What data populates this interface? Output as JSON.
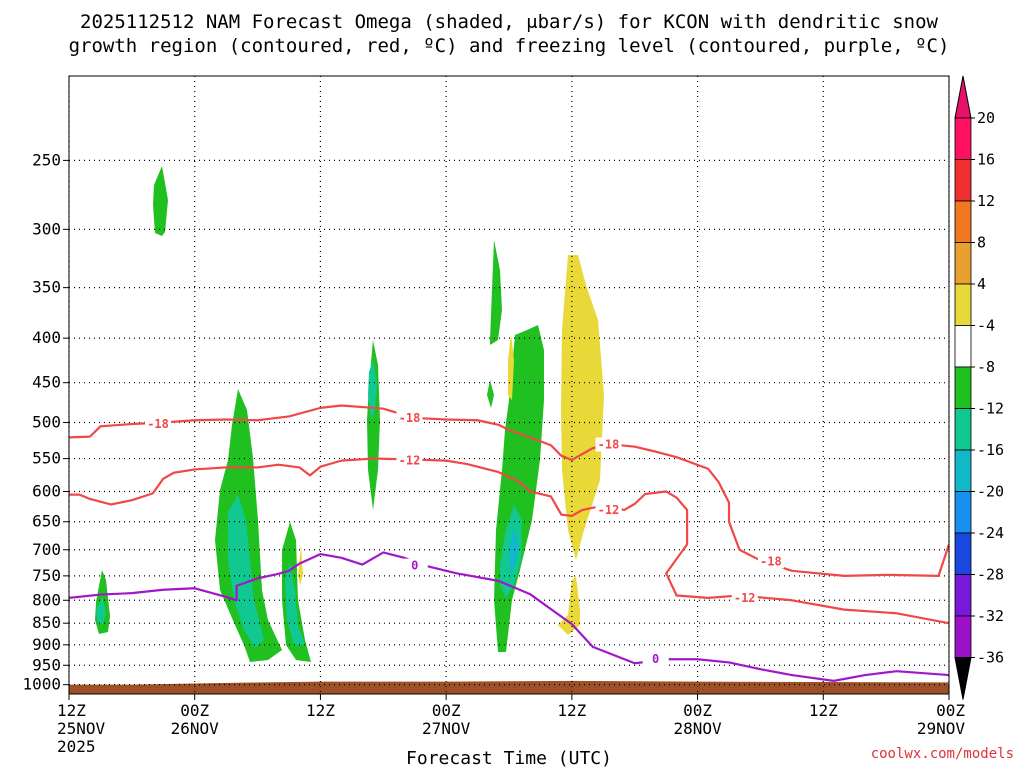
{
  "chart_data": {
    "type": "heatmap",
    "title_lines": [
      "2025112512 NAM Forecast Omega (shaded, μbar/s) for KCON with dendritic snow",
      "growth region (contoured, red, ºC) and freezing level (contoured, purple, ºC)"
    ],
    "xlabel": "Forecast Time (UTC)",
    "ylabel": "",
    "credit": "coolwx.com/models",
    "x_unit": "forecast hour",
    "x_range": [
      0,
      84
    ],
    "x_ticks": [
      {
        "hour": 0,
        "lines": [
          "12Z",
          "25NOV",
          "2025"
        ]
      },
      {
        "hour": 12,
        "lines": [
          "00Z",
          "26NOV"
        ]
      },
      {
        "hour": 24,
        "lines": [
          "12Z"
        ]
      },
      {
        "hour": 36,
        "lines": [
          "00Z",
          "27NOV"
        ]
      },
      {
        "hour": 48,
        "lines": [
          "12Z"
        ]
      },
      {
        "hour": 60,
        "lines": [
          "00Z",
          "28NOV"
        ]
      },
      {
        "hour": 72,
        "lines": [
          "12Z"
        ]
      },
      {
        "hour": 84,
        "lines": [
          "00Z",
          "29NOV"
        ]
      }
    ],
    "y_unit": "hPa",
    "y_range": [
      1025,
      200
    ],
    "y_ticks": [
      250,
      300,
      350,
      400,
      450,
      500,
      550,
      600,
      650,
      700,
      750,
      800,
      850,
      900,
      950,
      1000
    ],
    "grid": true,
    "colorbar": {
      "labels": [
        "20",
        "16",
        "12",
        "8",
        "4",
        "-4",
        "-8",
        "-12",
        "-16",
        "-20",
        "-24",
        "-28",
        "-32",
        "-36"
      ],
      "colors": [
        "#ff1060",
        "#ee3030",
        "#f07820",
        "#e8a030",
        "#e8d838",
        "#ffffff",
        "#20c020",
        "#10c890",
        "#10b8c8",
        "#1890f0",
        "#1848e0",
        "#7818d8",
        "#9c10c8",
        "#9c9c9c",
        "#000000"
      ],
      "top_arrow_color": "#e8106a",
      "bottom_arrow_color": "#000000"
    },
    "series": [
      {
        "kind": "contour",
        "value": -18,
        "color": "#f04848",
        "points": [
          [
            0,
            520
          ],
          [
            2,
            519
          ],
          [
            3,
            505
          ],
          [
            6,
            502
          ],
          [
            9,
            500
          ],
          [
            12,
            497
          ],
          [
            15,
            496
          ],
          [
            18,
            497
          ],
          [
            21,
            492
          ],
          [
            24,
            481
          ],
          [
            26,
            478
          ],
          [
            30,
            482
          ],
          [
            33,
            494
          ],
          [
            36,
            496
          ],
          [
            39,
            497
          ],
          [
            41,
            503
          ],
          [
            42,
            510
          ],
          [
            44,
            520
          ],
          [
            46,
            531
          ],
          [
            47,
            546
          ],
          [
            48,
            552
          ],
          [
            50,
            535
          ],
          [
            52,
            530
          ],
          [
            54,
            533
          ],
          [
            56,
            540
          ],
          [
            58,
            548
          ],
          [
            61,
            565
          ],
          [
            62,
            585
          ],
          [
            63,
            618
          ],
          [
            63,
            650
          ],
          [
            64,
            700
          ],
          [
            66,
            720
          ],
          [
            69,
            740
          ],
          [
            74,
            750
          ],
          [
            78,
            748
          ],
          [
            83,
            750
          ],
          [
            84,
            690
          ]
        ],
        "labels": [
          [
            8.5,
            502
          ],
          [
            32.5,
            494
          ],
          [
            51.5,
            530
          ],
          [
            67,
            722
          ]
        ]
      },
      {
        "kind": "contour",
        "value": -12,
        "color": "#f04848",
        "points": [
          [
            0,
            605
          ],
          [
            1,
            605
          ],
          [
            2,
            612
          ],
          [
            4,
            621
          ],
          [
            6,
            614
          ],
          [
            8,
            603
          ],
          [
            9,
            580
          ],
          [
            10,
            571
          ],
          [
            12,
            566
          ],
          [
            15,
            563
          ],
          [
            18,
            563
          ],
          [
            20,
            559
          ],
          [
            22,
            563
          ],
          [
            23,
            575
          ],
          [
            24,
            562
          ],
          [
            26,
            553
          ],
          [
            29,
            550
          ],
          [
            32,
            551
          ],
          [
            36,
            553
          ],
          [
            38,
            558
          ],
          [
            41,
            570
          ],
          [
            43,
            585
          ],
          [
            44,
            600
          ],
          [
            46,
            608
          ],
          [
            47,
            638
          ],
          [
            48,
            640
          ],
          [
            49,
            630
          ],
          [
            51,
            623
          ],
          [
            53,
            630
          ],
          [
            54,
            620
          ],
          [
            55,
            604
          ],
          [
            57,
            600
          ],
          [
            58,
            610
          ],
          [
            59,
            630
          ],
          [
            59,
            690
          ],
          [
            57,
            745
          ],
          [
            58,
            790
          ],
          [
            61,
            795
          ],
          [
            64,
            790
          ],
          [
            69,
            800
          ],
          [
            74,
            820
          ],
          [
            79,
            828
          ],
          [
            84,
            850
          ]
        ],
        "labels": [
          [
            32.5,
            553
          ],
          [
            51.5,
            630
          ],
          [
            64.5,
            795
          ]
        ]
      },
      {
        "kind": "contour",
        "value": 0,
        "color": "#a018c8",
        "points": [
          [
            0,
            795
          ],
          [
            3,
            788
          ],
          [
            6,
            785
          ],
          [
            9,
            778
          ],
          [
            12,
            775
          ],
          [
            15,
            793
          ],
          [
            16,
            800
          ],
          [
            16,
            770
          ],
          [
            18,
            755
          ],
          [
            20,
            746
          ],
          [
            21,
            740
          ],
          [
            22,
            726
          ],
          [
            24,
            708
          ],
          [
            26,
            715
          ],
          [
            28,
            728
          ],
          [
            30,
            705
          ],
          [
            32,
            715
          ],
          [
            34,
            730
          ],
          [
            37,
            745
          ],
          [
            41,
            760
          ],
          [
            44,
            787
          ],
          [
            48,
            852
          ],
          [
            50,
            905
          ],
          [
            54,
            945
          ],
          [
            57,
            935
          ],
          [
            60,
            935
          ],
          [
            63,
            943
          ],
          [
            66,
            960
          ],
          [
            69,
            975
          ],
          [
            73,
            990
          ],
          [
            76,
            975
          ],
          [
            79,
            965
          ],
          [
            84,
            975
          ]
        ],
        "labels": [
          [
            33,
            730
          ],
          [
            56,
            935
          ]
        ]
      }
    ],
    "ground_pressure_hPa": [
      [
        0,
        1000
      ],
      [
        6,
        1000
      ],
      [
        16,
        995
      ],
      [
        24,
        992
      ],
      [
        36,
        992
      ],
      [
        48,
        990
      ],
      [
        60,
        992
      ],
      [
        72,
        993
      ],
      [
        84,
        994
      ]
    ]
  }
}
